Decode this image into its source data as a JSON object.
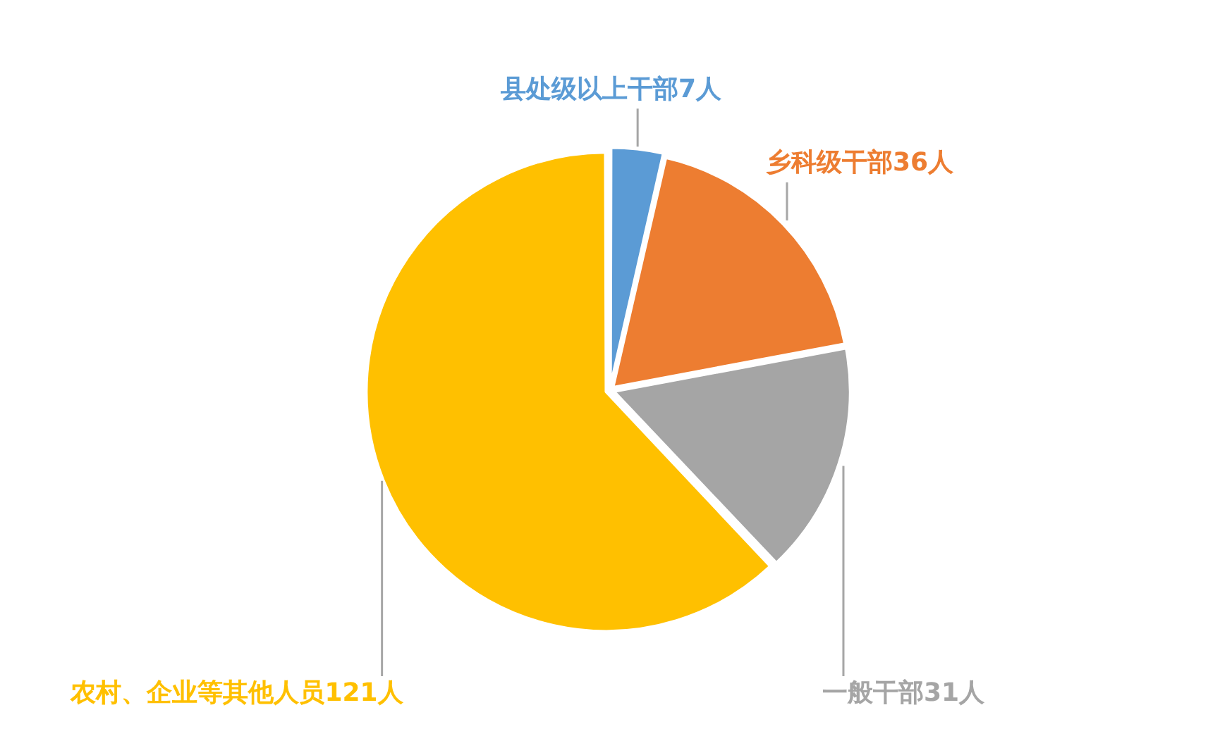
{
  "chart_data": {
    "type": "pie",
    "categories": [
      "县处级以上干部7人",
      "乡科级干部36人",
      "一般干部31人",
      "农村、企业等其他人员121人"
    ],
    "values": [
      7,
      36,
      31,
      121
    ],
    "colors": [
      "#5b9bd5",
      "#ed7d31",
      "#a5a5a5",
      "#ffc000"
    ],
    "legend": false
  }
}
